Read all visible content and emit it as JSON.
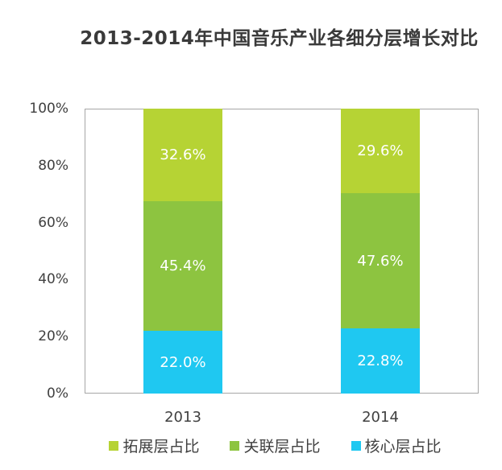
{
  "chart_data": {
    "type": "bar",
    "stacked": true,
    "title": "2013-2014年中国音乐产业各细分层增长对比",
    "categories": [
      "2013",
      "2014"
    ],
    "series": [
      {
        "name": "核心层占比",
        "color": "#1fc8f1",
        "values": [
          22.0,
          22.8
        ],
        "labels": [
          "22.0%",
          "22.8%"
        ]
      },
      {
        "name": "关联层占比",
        "color": "#8dc440",
        "values": [
          45.4,
          47.6
        ],
        "labels": [
          "45.4%",
          "47.6%"
        ]
      },
      {
        "name": "拓展层占比",
        "color": "#b6d334",
        "values": [
          32.6,
          29.6
        ],
        "labels": [
          "32.6%",
          "29.6%"
        ]
      }
    ],
    "xlabel": "",
    "ylabel": "",
    "ylim": [
      0,
      100
    ],
    "yticks": [
      "0%",
      "20%",
      "40%",
      "60%",
      "80%",
      "100%"
    ],
    "legend": {
      "position": "bottom",
      "items": [
        {
          "label": "拓展层占比",
          "color": "#b6d334"
        },
        {
          "label": "关联层占比",
          "color": "#8dc440"
        },
        {
          "label": "核心层占比",
          "color": "#1fc8f1"
        }
      ]
    },
    "grid": false
  }
}
